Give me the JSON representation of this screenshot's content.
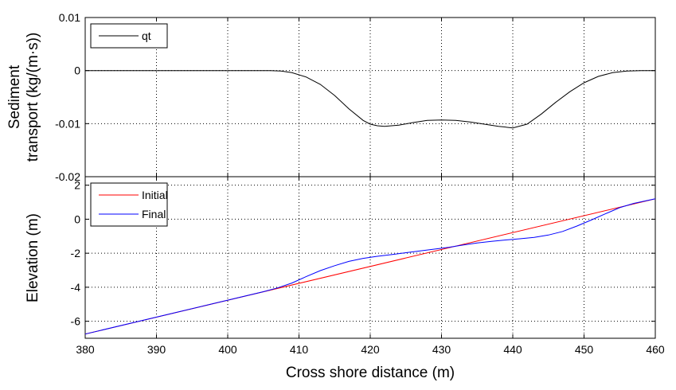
{
  "chart_data": [
    {
      "type": "line",
      "name": "sediment-transport",
      "ylabel_lines": [
        "Sediment",
        "transport (kg/(m·s))"
      ],
      "xlim": [
        380,
        460
      ],
      "ylim": [
        -0.02,
        0.01
      ],
      "xticks": [
        380,
        390,
        400,
        410,
        420,
        430,
        440,
        450,
        460
      ],
      "yticks": [
        -0.02,
        -0.01,
        0,
        0.01
      ],
      "ytick_labels": [
        "-0.02",
        "-0.01",
        "0",
        "0.01"
      ],
      "grid": true,
      "legend_position": "top-left",
      "series": [
        {
          "name": "qt",
          "color": "#000000",
          "x": [
            380,
            400,
            406,
            407.5,
            409,
            411,
            413,
            415,
            417,
            419,
            420,
            421,
            422,
            424,
            426,
            428,
            430,
            432,
            434,
            436,
            438,
            440,
            442,
            444,
            446,
            448,
            450,
            452,
            454,
            456,
            458,
            460
          ],
          "y": [
            0,
            0,
            0,
            -0.0001,
            -0.0004,
            -0.0012,
            -0.0026,
            -0.0047,
            -0.0072,
            -0.0094,
            -0.0101,
            -0.0104,
            -0.0105,
            -0.0103,
            -0.0098,
            -0.0094,
            -0.0093,
            -0.0094,
            -0.0097,
            -0.0101,
            -0.0105,
            -0.0108,
            -0.0101,
            -0.0082,
            -0.006,
            -0.004,
            -0.0023,
            -0.0011,
            -0.0004,
            -0.0001,
            0,
            0
          ]
        }
      ]
    },
    {
      "type": "line",
      "name": "elevation",
      "ylabel": "Elevation (m)",
      "xlabel": "Cross shore distance (m)",
      "xlim": [
        380,
        460
      ],
      "ylim": [
        -7,
        2.5
      ],
      "xticks": [
        380,
        390,
        400,
        410,
        420,
        430,
        440,
        450,
        460
      ],
      "xtick_labels": [
        "380",
        "390",
        "400",
        "410",
        "420",
        "430",
        "440",
        "450",
        "460"
      ],
      "yticks": [
        -6,
        -4,
        -2,
        0,
        2
      ],
      "ytick_labels": [
        "-6",
        "-4",
        "-2",
        "0",
        "2"
      ],
      "grid": true,
      "legend_position": "top-left",
      "series": [
        {
          "name": "Initial",
          "color": "#ff0000",
          "x": [
            380,
            460
          ],
          "y": [
            -6.75,
            1.2
          ]
        },
        {
          "name": "Final",
          "color": "#0000ff",
          "x": [
            380,
            400,
            405,
            407,
            409,
            411,
            413,
            415,
            417,
            419,
            421,
            423,
            425,
            427,
            429,
            431,
            433,
            435,
            437,
            439,
            441,
            443,
            445,
            447,
            449,
            451,
            453,
            455,
            457,
            460
          ],
          "y": [
            -6.75,
            -4.76,
            -4.26,
            -4.04,
            -3.75,
            -3.38,
            -3.02,
            -2.73,
            -2.48,
            -2.3,
            -2.18,
            -2.08,
            -1.97,
            -1.86,
            -1.76,
            -1.65,
            -1.52,
            -1.4,
            -1.3,
            -1.22,
            -1.15,
            -1.07,
            -0.93,
            -0.72,
            -0.4,
            -0.05,
            0.32,
            0.68,
            0.93,
            1.2
          ]
        }
      ]
    }
  ]
}
